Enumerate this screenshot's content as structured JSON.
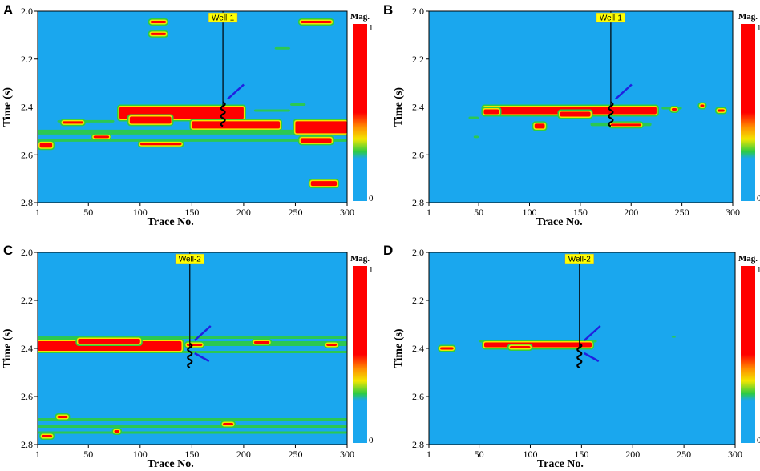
{
  "colors": {
    "background": "#1aa7ee",
    "high": "#ff0000",
    "mid_yellow": "#f2e600",
    "mid_green": "#2ecc40",
    "well_label_bg": "#ffff00",
    "arrow": "#2020e0"
  },
  "chart_data": [
    {
      "panel": "A",
      "type": "heatmap",
      "well_label": "Well-1",
      "well_trace": 180,
      "x": {
        "label": "Trace No.",
        "range": [
          1,
          300
        ],
        "ticks": [
          "1",
          "50",
          "100",
          "150",
          "200",
          "250",
          "300"
        ],
        "tick_values": [
          1,
          50,
          100,
          150,
          200,
          250,
          300
        ]
      },
      "y": {
        "label": "Time (s)",
        "range": [
          2.0,
          2.8
        ],
        "ticks": [
          "2.0",
          "2.2",
          "2.4",
          "2.6",
          "2.8"
        ],
        "tick_values": [
          2.0,
          2.2,
          2.4,
          2.6,
          2.8
        ]
      },
      "colorbar": {
        "title": "Mag.",
        "max_label": "1",
        "min_label": "0",
        "range": [
          0,
          1
        ]
      },
      "arrows": 1,
      "high_zones": [
        {
          "t0": 80,
          "t1": 200,
          "s0": 2.4,
          "s1": 2.45
        },
        {
          "t0": 90,
          "t1": 130,
          "s0": 2.44,
          "s1": 2.47
        },
        {
          "t0": 150,
          "t1": 235,
          "s0": 2.46,
          "s1": 2.49
        },
        {
          "t0": 250,
          "t1": 300,
          "s0": 2.46,
          "s1": 2.51
        },
        {
          "t0": 110,
          "t1": 125,
          "s0": 2.04,
          "s1": 2.05
        },
        {
          "t0": 255,
          "t1": 285,
          "s0": 2.04,
          "s1": 2.05
        },
        {
          "t0": 110,
          "t1": 125,
          "s0": 2.09,
          "s1": 2.1
        },
        {
          "t0": 255,
          "t1": 285,
          "s0": 2.53,
          "s1": 2.55
        },
        {
          "t0": 100,
          "t1": 140,
          "s0": 2.55,
          "s1": 2.56
        },
        {
          "t0": 265,
          "t1": 290,
          "s0": 2.71,
          "s1": 2.73
        },
        {
          "t0": 25,
          "t1": 45,
          "s0": 2.46,
          "s1": 2.47
        },
        {
          "t0": 3,
          "t1": 15,
          "s0": 2.55,
          "s1": 2.57
        },
        {
          "t0": 55,
          "t1": 70,
          "s0": 2.52,
          "s1": 2.53
        }
      ],
      "green_zones": [
        {
          "t0": 1,
          "t1": 300,
          "s0": 2.495,
          "s1": 2.515
        },
        {
          "t0": 20,
          "t1": 75,
          "s0": 2.455,
          "s1": 2.465
        },
        {
          "t0": 210,
          "t1": 245,
          "s0": 2.41,
          "s1": 2.42
        },
        {
          "t0": 230,
          "t1": 245,
          "s0": 2.15,
          "s1": 2.16
        },
        {
          "t0": 245,
          "t1": 260,
          "s0": 2.385,
          "s1": 2.395
        },
        {
          "t0": 1,
          "t1": 300,
          "s0": 2.535,
          "s1": 2.545
        }
      ]
    },
    {
      "panel": "B",
      "type": "heatmap",
      "well_label": "Well-1",
      "well_trace": 180,
      "x": {
        "label": "Trace No.",
        "range": [
          1,
          300
        ],
        "ticks": [
          "1",
          "50",
          "100",
          "150",
          "200",
          "250",
          "300"
        ],
        "tick_values": [
          1,
          50,
          100,
          150,
          200,
          250,
          300
        ]
      },
      "y": {
        "label": "Time (s)",
        "range": [
          2.0,
          2.8
        ],
        "ticks": [
          "2.0",
          "2.2",
          "2.4",
          "2.6",
          "2.8"
        ],
        "tick_values": [
          2.0,
          2.2,
          2.4,
          2.6,
          2.8
        ]
      },
      "colorbar": {
        "title": "Mag.",
        "max_label": "1",
        "min_label": "0",
        "range": [
          0,
          1
        ]
      },
      "arrows": 1,
      "high_zones": [
        {
          "t0": 55,
          "t1": 225,
          "s0": 2.4,
          "s1": 2.43
        },
        {
          "t0": 55,
          "t1": 70,
          "s0": 2.41,
          "s1": 2.43
        },
        {
          "t0": 130,
          "t1": 160,
          "s0": 2.42,
          "s1": 2.44
        },
        {
          "t0": 105,
          "t1": 115,
          "s0": 2.47,
          "s1": 2.49
        },
        {
          "t0": 180,
          "t1": 210,
          "s0": 2.47,
          "s1": 2.48
        },
        {
          "t0": 268,
          "t1": 272,
          "s0": 2.39,
          "s1": 2.4
        },
        {
          "t0": 285,
          "t1": 292,
          "s0": 2.41,
          "s1": 2.42
        },
        {
          "t0": 240,
          "t1": 245,
          "s0": 2.405,
          "s1": 2.415
        }
      ],
      "green_zones": [
        {
          "t0": 40,
          "t1": 50,
          "s0": 2.44,
          "s1": 2.45
        },
        {
          "t0": 45,
          "t1": 50,
          "s0": 2.52,
          "s1": 2.53
        },
        {
          "t0": 160,
          "t1": 220,
          "s0": 2.465,
          "s1": 2.48
        },
        {
          "t0": 230,
          "t1": 250,
          "s0": 2.4,
          "s1": 2.41
        }
      ]
    },
    {
      "panel": "C",
      "type": "heatmap",
      "well_label": "Well-2",
      "well_trace": 148,
      "x": {
        "label": "Trace No.",
        "range": [
          1,
          300
        ],
        "ticks": [
          "1",
          "50",
          "100",
          "150",
          "200",
          "250",
          "300"
        ],
        "tick_values": [
          1,
          50,
          100,
          150,
          200,
          250,
          300
        ]
      },
      "y": {
        "label": "Time (s)",
        "range": [
          2.0,
          2.8
        ],
        "ticks": [
          "2.0",
          "2.2",
          "2.4",
          "2.6",
          "2.8"
        ],
        "tick_values": [
          2.0,
          2.2,
          2.4,
          2.6,
          2.8
        ]
      },
      "colorbar": {
        "title": "Mag.",
        "max_label": "1",
        "min_label": "0",
        "range": [
          0,
          1
        ]
      },
      "arrows": 2,
      "high_zones": [
        {
          "t0": 1,
          "t1": 140,
          "s0": 2.37,
          "s1": 2.41
        },
        {
          "t0": 40,
          "t1": 100,
          "s0": 2.36,
          "s1": 2.38
        },
        {
          "t0": 145,
          "t1": 160,
          "s0": 2.38,
          "s1": 2.39
        },
        {
          "t0": 210,
          "t1": 225,
          "s0": 2.37,
          "s1": 2.38
        },
        {
          "t0": 20,
          "t1": 30,
          "s0": 2.68,
          "s1": 2.69
        },
        {
          "t0": 75,
          "t1": 80,
          "s0": 2.74,
          "s1": 2.75
        },
        {
          "t0": 180,
          "t1": 190,
          "s0": 2.71,
          "s1": 2.72
        },
        {
          "t0": 280,
          "t1": 290,
          "s0": 2.38,
          "s1": 2.39
        },
        {
          "t0": 5,
          "t1": 15,
          "s0": 2.76,
          "s1": 2.77
        }
      ],
      "green_zones": [
        {
          "t0": 1,
          "t1": 300,
          "s0": 2.35,
          "s1": 2.36
        },
        {
          "t0": 1,
          "t1": 300,
          "s0": 2.41,
          "s1": 2.42
        },
        {
          "t0": 160,
          "t1": 300,
          "s0": 2.37,
          "s1": 2.39
        },
        {
          "t0": 1,
          "t1": 300,
          "s0": 2.69,
          "s1": 2.7
        },
        {
          "t0": 1,
          "t1": 300,
          "s0": 2.745,
          "s1": 2.755
        },
        {
          "t0": 1,
          "t1": 300,
          "s0": 2.72,
          "s1": 2.73
        }
      ]
    },
    {
      "panel": "D",
      "type": "heatmap",
      "well_label": "Well-2",
      "well_trace": 148,
      "x": {
        "label": "Trace No.",
        "range": [
          1,
          300
        ],
        "ticks": [
          "1",
          "50",
          "100",
          "150",
          "200",
          "250",
          "300"
        ],
        "tick_values": [
          1,
          50,
          100,
          150,
          200,
          250,
          300
        ]
      },
      "y": {
        "label": "Time (s)",
        "range": [
          2.0,
          2.8
        ],
        "ticks": [
          "2.0",
          "2.2",
          "2.4",
          "2.6",
          "2.8"
        ],
        "tick_values": [
          2.0,
          2.2,
          2.4,
          2.6,
          2.8
        ]
      },
      "colorbar": {
        "title": "Mag.",
        "max_label": "1",
        "min_label": "0",
        "range": [
          0,
          1
        ]
      },
      "arrows": 2,
      "high_zones": [
        {
          "t0": 55,
          "t1": 160,
          "s0": 2.375,
          "s1": 2.395
        },
        {
          "t0": 12,
          "t1": 25,
          "s0": 2.395,
          "s1": 2.405
        },
        {
          "t0": 80,
          "t1": 100,
          "s0": 2.39,
          "s1": 2.4
        }
      ],
      "green_zones": [
        {
          "t0": 50,
          "t1": 165,
          "s0": 2.365,
          "s1": 2.375
        },
        {
          "t0": 60,
          "t1": 150,
          "s0": 2.395,
          "s1": 2.405
        },
        {
          "t0": 238,
          "t1": 242,
          "s0": 2.35,
          "s1": 2.355
        }
      ]
    }
  ]
}
